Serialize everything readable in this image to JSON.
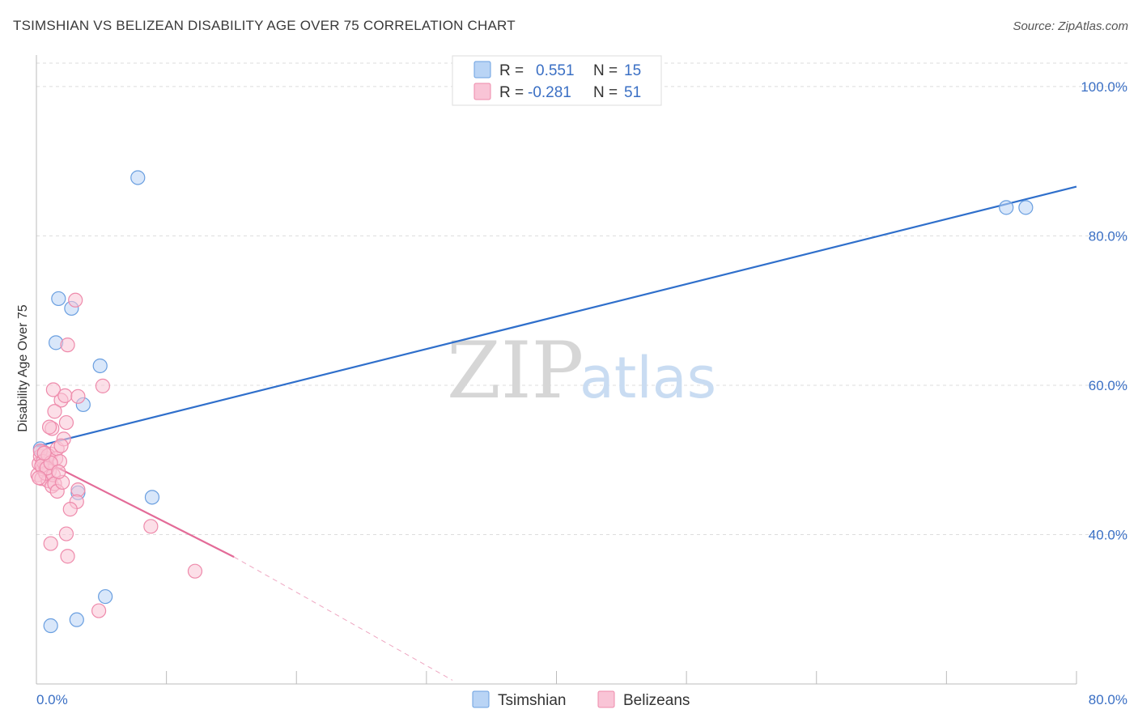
{
  "title": "TSIMSHIAN VS BELIZEAN DISABILITY AGE OVER 75 CORRELATION CHART",
  "source": "Source: ZipAtlas.com",
  "watermark": {
    "zip": "ZIP",
    "atlas": "atlas"
  },
  "colors": {
    "tsimshian_fill": "#b9d4f5",
    "tsimshian_stroke": "#6a9fe0",
    "tsimshian_line": "#2f6fcb",
    "belizean_fill": "#f9c4d6",
    "belizean_stroke": "#ee8aab",
    "belizean_line": "#e36b98",
    "grid": "#dddddd",
    "axis_text": "#3a6fc4"
  },
  "legend": {
    "rows": [
      {
        "r_label": "R =",
        "r_value": "0.551",
        "n_label": "N =",
        "n_value": "15"
      },
      {
        "r_label": "R =",
        "r_value": "-0.281",
        "n_label": "N =",
        "n_value": "51"
      }
    ]
  },
  "chart_data": {
    "type": "scatter",
    "title": "TSIMSHIAN VS BELIZEAN DISABILITY AGE OVER 75 CORRELATION CHART",
    "xlabel": "",
    "ylabel": "Disability Age Over 75",
    "xlim": [
      0,
      80
    ],
    "ylim": [
      20,
      104
    ],
    "x_tick_labels": [
      "0.0%",
      "80.0%"
    ],
    "y_ticks": [
      40,
      60,
      80,
      100
    ],
    "y_tick_labels": [
      "40.0%",
      "60.0%",
      "80.0%",
      "100.0%"
    ],
    "grid": true,
    "legend_position": "top-center",
    "series": [
      {
        "name": "Tsimshian",
        "r": 0.551,
        "n": 15,
        "points": [
          [
            1.1,
            27.8
          ],
          [
            3.1,
            28.6
          ],
          [
            5.3,
            31.7
          ],
          [
            8.9,
            45.0
          ],
          [
            3.2,
            45.6
          ],
          [
            3.6,
            57.4
          ],
          [
            4.9,
            62.6
          ],
          [
            1.5,
            65.7
          ],
          [
            2.7,
            70.3
          ],
          [
            1.7,
            71.6
          ],
          [
            7.8,
            87.8
          ],
          [
            74.6,
            83.8
          ],
          [
            76.1,
            83.8
          ],
          [
            0.3,
            51.5
          ],
          [
            0.6,
            50.0
          ]
        ],
        "trend": {
          "x1": 0,
          "y1": 51.8,
          "x2": 80,
          "y2": 86.6
        }
      },
      {
        "name": "Belizeans",
        "r": -0.281,
        "n": 51,
        "points": [
          [
            0.1,
            48.0
          ],
          [
            0.2,
            49.5
          ],
          [
            0.3,
            50.5
          ],
          [
            0.4,
            47.5
          ],
          [
            0.5,
            48.8
          ],
          [
            0.6,
            51.0
          ],
          [
            0.7,
            49.0
          ],
          [
            0.8,
            50.2
          ],
          [
            0.9,
            47.2
          ],
          [
            1.0,
            48.5
          ],
          [
            1.1,
            50.8
          ],
          [
            1.2,
            46.5
          ],
          [
            0.3,
            51.2
          ],
          [
            0.5,
            49.8
          ],
          [
            0.7,
            48.2
          ],
          [
            0.9,
            50.6
          ],
          [
            1.3,
            48.0
          ],
          [
            1.5,
            50.2
          ],
          [
            1.6,
            51.5
          ],
          [
            1.8,
            49.8
          ],
          [
            1.4,
            46.8
          ],
          [
            1.6,
            45.8
          ],
          [
            2.0,
            47.0
          ],
          [
            2.1,
            52.8
          ],
          [
            2.3,
            55.0
          ],
          [
            1.9,
            58.0
          ],
          [
            1.3,
            59.4
          ],
          [
            1.4,
            56.5
          ],
          [
            1.2,
            54.2
          ],
          [
            1.0,
            54.4
          ],
          [
            1.9,
            51.9
          ],
          [
            2.2,
            58.6
          ],
          [
            3.2,
            46.0
          ],
          [
            3.1,
            44.4
          ],
          [
            3.2,
            58.5
          ],
          [
            2.6,
            43.4
          ],
          [
            2.3,
            40.1
          ],
          [
            2.4,
            37.1
          ],
          [
            1.1,
            38.8
          ],
          [
            2.4,
            65.4
          ],
          [
            3.0,
            71.4
          ],
          [
            5.1,
            59.9
          ],
          [
            8.8,
            41.1
          ],
          [
            12.2,
            35.1
          ],
          [
            4.8,
            29.8
          ],
          [
            0.4,
            49.2
          ],
          [
            0.8,
            48.9
          ],
          [
            1.1,
            49.6
          ],
          [
            0.2,
            47.6
          ],
          [
            1.7,
            48.4
          ],
          [
            0.6,
            50.9
          ]
        ],
        "trend": {
          "x1": 0,
          "y1": 50.4,
          "x2": 15.2,
          "y2": 37.0
        },
        "trend_extension": {
          "x1": 15.2,
          "y1": 37.0,
          "x2": 32.0,
          "y2": 20.5
        }
      }
    ]
  }
}
